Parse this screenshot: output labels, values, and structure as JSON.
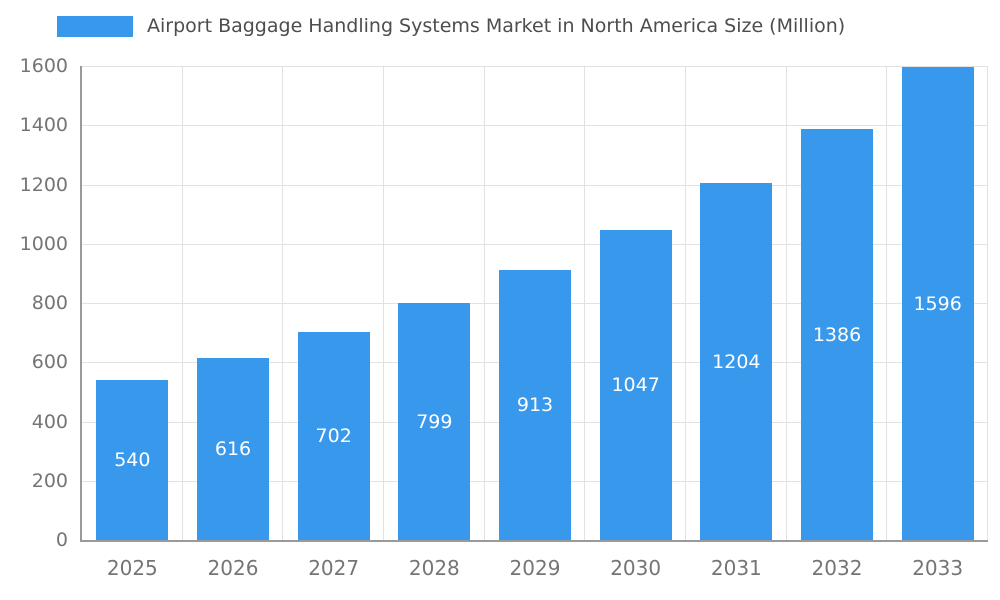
{
  "chart_data": {
    "type": "bar",
    "title": "Airport Baggage Handling Systems Market in North America Size (Million)",
    "categories": [
      "2025",
      "2026",
      "2027",
      "2028",
      "2029",
      "2030",
      "2031",
      "2032",
      "2033"
    ],
    "values": [
      540,
      616,
      702,
      799,
      913,
      1047,
      1204,
      1386,
      1596
    ],
    "xlabel": "",
    "ylabel": "",
    "ylim": [
      0,
      1600
    ],
    "ytick_step": 200,
    "grid": true,
    "legend_position": "top-left",
    "colors": {
      "bar": "#3898ec",
      "bar_value_label": "#ffffff",
      "axis_line": "#9a9a9a",
      "grid_line": "#e2e2e2",
      "tick_label": "#757575",
      "title_text": "#4d4d4d"
    }
  }
}
